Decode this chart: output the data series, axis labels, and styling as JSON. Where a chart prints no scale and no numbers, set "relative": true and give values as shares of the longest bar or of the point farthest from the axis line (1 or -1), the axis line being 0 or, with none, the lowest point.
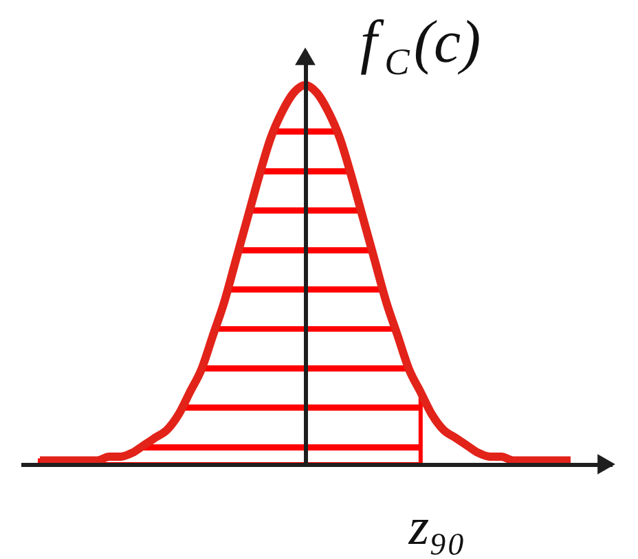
{
  "chart_data": {
    "type": "line",
    "relative": true,
    "ylabel": "f$_{C}$(c)",
    "categories": [
      null,
      null,
      null,
      null,
      null,
      null,
      null,
      null,
      null,
      null,
      null,
      null,
      null,
      null,
      null,
      null,
      null,
      null,
      null,
      null,
      null,
      null,
      null,
      null,
      null,
      null,
      null,
      null,
      null,
      null,
      null,
      null,
      null,
      null,
      null,
      null,
      null,
      null,
      null,
      null,
      null,
      null,
      null,
      null,
      null,
      null,
      null
    ],
    "series": [
      {
        "type": "area",
        "color": "#ff0000",
        "values": [
          0.01,
          0.01,
          0.01,
          0.01,
          0.01,
          0.01,
          0.02,
          0.02,
          0.03,
          0.05,
          0.07,
          0.09,
          0.13,
          0.19,
          0.25,
          0.34,
          0.43,
          0.54,
          0.65,
          0.76,
          0.86,
          0.93,
          0.98,
          1.0,
          0.98,
          0.93,
          0.86,
          0.76,
          0.65,
          0.54,
          0.43,
          0.34,
          0.25,
          0.19,
          null,
          null,
          null,
          null,
          null,
          null,
          null,
          null,
          null,
          null,
          null,
          null,
          null
        ]
      },
      {
        "color": "#e2231a",
        "values": [
          0.01,
          0.01,
          0.01,
          0.01,
          0.01,
          0.01,
          0.02,
          0.02,
          0.03,
          0.05,
          0.07,
          0.09,
          0.13,
          0.19,
          0.25,
          0.34,
          0.43,
          0.54,
          0.65,
          0.76,
          0.86,
          0.93,
          0.98,
          1.0,
          0.98,
          0.93,
          0.86,
          0.76,
          0.65,
          0.54,
          0.43,
          0.34,
          0.25,
          0.19,
          0.13,
          0.09,
          0.07,
          0.05,
          0.03,
          0.02,
          0.02,
          0.01,
          0.01,
          0.01,
          0.01,
          0.01,
          0.01
        ]
      }
    ],
    "annotations": [
      "z₉₀"
    ]
  }
}
